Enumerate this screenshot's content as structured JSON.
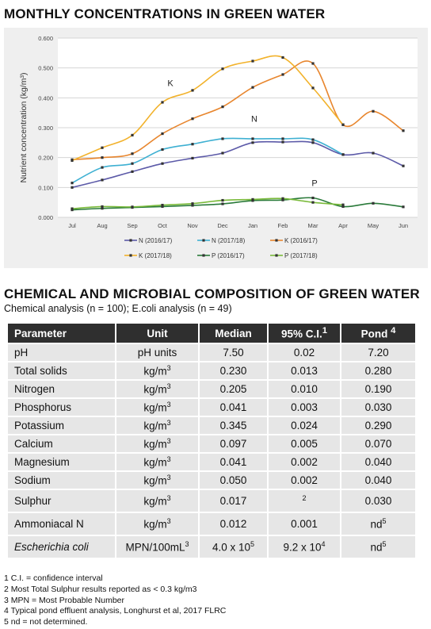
{
  "heading_top": "MONTHLY CONCENTRATIONS IN GREEN WATER",
  "heading_table": "CHEMICAL AND MICROBIAL COMPOSITION OF GREEN WATER",
  "subtitle": "Chemical analysis (n = 100); E.coli analysis (n = 49)",
  "chart_data": {
    "type": "line",
    "title": "",
    "xlabel": "",
    "ylabel": "Nutrient concentration (kg/m³)",
    "categories": [
      "Jul",
      "Aug",
      "Sep",
      "Oct",
      "Nov",
      "Dec",
      "Jan",
      "Feb",
      "Mar",
      "Apr",
      "May",
      "Jun"
    ],
    "ylim": [
      0,
      0.6
    ],
    "yticks": [
      "0.000",
      "0.100",
      "0.200",
      "0.300",
      "0.400",
      "0.500",
      "0.600"
    ],
    "grid": true,
    "legend_position": "bottom",
    "annotations": [
      {
        "text": "K",
        "x": "Oct",
        "y": 0.44
      },
      {
        "text": "N",
        "x": "Dec",
        "y": 0.32
      },
      {
        "text": "P",
        "x": "Feb",
        "y": 0.105
      }
    ],
    "series": [
      {
        "name": "N (2016/17)",
        "color": "#5c5aa8",
        "values": [
          0.1,
          0.125,
          0.153,
          0.18,
          0.198,
          0.215,
          0.25,
          0.252,
          0.25,
          0.21,
          0.215,
          0.172
        ]
      },
      {
        "name": "N (2017/18)",
        "color": "#3eb0d2",
        "values": [
          0.115,
          0.167,
          0.18,
          0.227,
          0.245,
          0.263,
          0.263,
          0.263,
          0.26,
          0.21,
          null,
          null
        ]
      },
      {
        "name": "K (2016/17)",
        "color": "#e8862e",
        "values": [
          0.193,
          0.2,
          0.213,
          0.28,
          0.33,
          0.37,
          0.435,
          0.478,
          0.515,
          0.31,
          0.355,
          0.29
        ]
      },
      {
        "name": "K (2017/18)",
        "color": "#f2b22b",
        "values": [
          0.19,
          0.233,
          0.275,
          0.385,
          0.425,
          0.497,
          0.523,
          0.535,
          0.433,
          0.31,
          null,
          null
        ]
      },
      {
        "name": "P (2016/17)",
        "color": "#2a7a3a",
        "values": [
          0.025,
          0.03,
          0.033,
          0.036,
          0.04,
          0.045,
          0.056,
          0.058,
          0.065,
          0.036,
          0.047,
          0.035
        ]
      },
      {
        "name": "P (2017/18)",
        "color": "#7aba3a",
        "values": [
          0.029,
          0.036,
          0.035,
          0.041,
          0.046,
          0.057,
          0.06,
          0.063,
          0.05,
          0.042,
          null,
          null
        ]
      }
    ]
  },
  "table": {
    "headers": {
      "parameter": "Parameter",
      "unit": "Unit",
      "median": "Median",
      "ci": "95% C.I.",
      "ci_sup": "1",
      "pond": "Pond ",
      "pond_sup": "4"
    },
    "rows": [
      {
        "parameter": "pH",
        "unit": "pH units",
        "median": "7.50",
        "ci": "0.02",
        "ci_sup": "",
        "pond": "7.20",
        "pond_sup": ""
      },
      {
        "parameter": "Total solids",
        "unit": "kg/m",
        "unit_sup": "3",
        "median": "0.230",
        "ci": "0.013",
        "ci_sup": "",
        "pond": "0.280",
        "pond_sup": ""
      },
      {
        "parameter": "Nitrogen",
        "unit": "kg/m",
        "unit_sup": "3",
        "median": "0.205",
        "ci": "0.010",
        "ci_sup": "",
        "pond": "0.190",
        "pond_sup": ""
      },
      {
        "parameter": "Phosphorus",
        "unit": "kg/m",
        "unit_sup": "3",
        "median": "0.041",
        "ci": "0.003",
        "ci_sup": "",
        "pond": "0.030",
        "pond_sup": ""
      },
      {
        "parameter": "Potassium",
        "unit": "kg/m",
        "unit_sup": "3",
        "median": "0.345",
        "ci": "0.024",
        "ci_sup": "",
        "pond": "0.290",
        "pond_sup": ""
      },
      {
        "parameter": "Calcium",
        "unit": "kg/m",
        "unit_sup": "3",
        "median": "0.097",
        "ci": "0.005",
        "ci_sup": "",
        "pond": "0.070",
        "pond_sup": ""
      },
      {
        "parameter": "Magnesium",
        "unit": "kg/m",
        "unit_sup": "3",
        "median": "0.041",
        "ci": "0.002",
        "ci_sup": "",
        "pond": "0.040",
        "pond_sup": ""
      },
      {
        "parameter": "Sodium",
        "unit": "kg/m",
        "unit_sup": "3",
        "median": "0.050",
        "ci": "0.002",
        "ci_sup": "",
        "pond": "0.040",
        "pond_sup": ""
      },
      {
        "parameter": "Sulphur",
        "unit": "kg/m",
        "unit_sup": "3",
        "median": "0.017",
        "ci": "",
        "ci_sup": "2",
        "pond": "0.030",
        "pond_sup": ""
      },
      {
        "parameter": "Ammoniacal N",
        "unit": "kg/m",
        "unit_sup": "3",
        "median": "0.012",
        "ci": "0.001",
        "ci_sup": "",
        "pond": "nd",
        "pond_sup": "5"
      },
      {
        "parameter": "Escherichia coli",
        "italic": true,
        "unit": "MPN/100mL",
        "unit_sup": "3",
        "median": "4.0 x 10",
        "median_sup": "5",
        "ci": "9.2 x 10",
        "ci_sup": "4",
        "pond": "nd",
        "pond_sup": "5"
      }
    ]
  },
  "footnotes": [
    "1 C.I. = confidence interval",
    "2 Most Total Sulphur results reported as < 0.3 kg/m3",
    "3 MPN = Most Probable Number",
    "4 Typical pond effluent analysis, Longhurst et al, 2017 FLRC",
    "5 nd = not determined."
  ]
}
